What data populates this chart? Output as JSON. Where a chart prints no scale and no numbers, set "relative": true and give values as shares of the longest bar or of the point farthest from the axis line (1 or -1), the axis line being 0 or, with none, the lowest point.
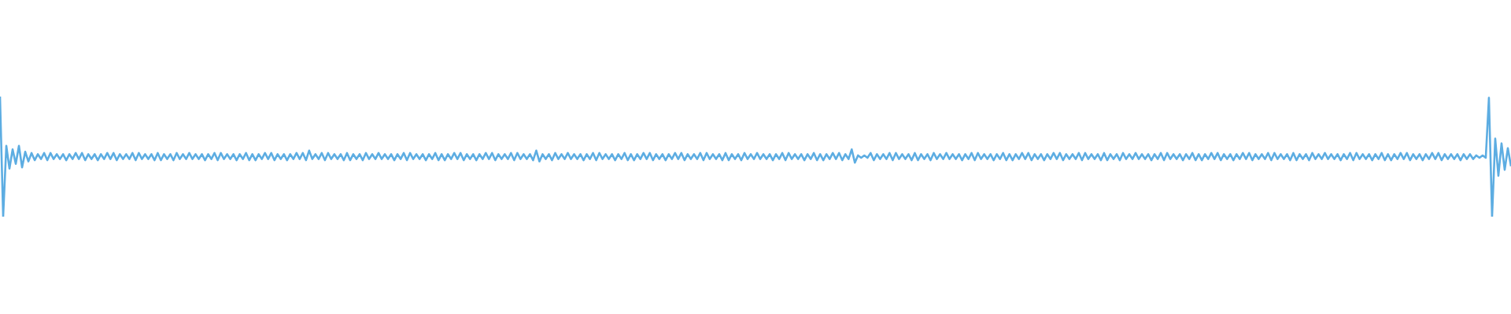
{
  "chart_data": {
    "type": "line",
    "relative": true,
    "color": "#5dade2",
    "categories": [
      null,
      null,
      null,
      null,
      null,
      null,
      null,
      null,
      null,
      null,
      null,
      null,
      null,
      null,
      null,
      null,
      null,
      null,
      null,
      null,
      null,
      null,
      null,
      null,
      null,
      null,
      null,
      null,
      null,
      null,
      null,
      null,
      null,
      null,
      null,
      null,
      null,
      null,
      null,
      null,
      null,
      null,
      null,
      null,
      null,
      null,
      null,
      null,
      null,
      null,
      null,
      null,
      null,
      null,
      null,
      null,
      null,
      null,
      null,
      null,
      null,
      null,
      null,
      null,
      null,
      null,
      null,
      null,
      null,
      null,
      null,
      null,
      null,
      null,
      null,
      null,
      null,
      null,
      null,
      null,
      null,
      null,
      null,
      null,
      null,
      null,
      null,
      null,
      null,
      null,
      null,
      null,
      null,
      null,
      null,
      null,
      null,
      null,
      null,
      null,
      null,
      null,
      null,
      null,
      null,
      null,
      null,
      null,
      null,
      null,
      null,
      null,
      null,
      null,
      null,
      null,
      null,
      null,
      null,
      null,
      null,
      null,
      null,
      null,
      null,
      null,
      null,
      null,
      null,
      null,
      null,
      null,
      null,
      null,
      null,
      null,
      null,
      null,
      null,
      null,
      null,
      null,
      null,
      null,
      null,
      null,
      null,
      null,
      null,
      null,
      null,
      null,
      null,
      null,
      null,
      null,
      null,
      null,
      null,
      null,
      null,
      null,
      null,
      null,
      null,
      null,
      null,
      null,
      null,
      null,
      null,
      null,
      null,
      null,
      null,
      null,
      null,
      null,
      null,
      null,
      null,
      null,
      null,
      null,
      null,
      null,
      null,
      null,
      null,
      null,
      null,
      null,
      null,
      null,
      null,
      null,
      null,
      null,
      null,
      null,
      null,
      null,
      null,
      null,
      null,
      null,
      null,
      null,
      null,
      null,
      null,
      null,
      null,
      null,
      null,
      null,
      null,
      null,
      null,
      null,
      null,
      null,
      null,
      null,
      null,
      null,
      null,
      null,
      null,
      null,
      null,
      null,
      null,
      null,
      null,
      null,
      null,
      null,
      null,
      null,
      null,
      null,
      null,
      null,
      null,
      null,
      null,
      null,
      null,
      null,
      null,
      null,
      null,
      null,
      null,
      null,
      null,
      null,
      null,
      null,
      null,
      null,
      null,
      null,
      null,
      null,
      null,
      null,
      null,
      null,
      null,
      null,
      null,
      null,
      null,
      null,
      null,
      null,
      null,
      null,
      null,
      null,
      null,
      null,
      null,
      null,
      null,
      null,
      null,
      null,
      null,
      null,
      null,
      null,
      null,
      null,
      null,
      null,
      null,
      null,
      null,
      null,
      null,
      null,
      null,
      null,
      null,
      null,
      null,
      null,
      null,
      null,
      null,
      null,
      null,
      null,
      null,
      null,
      null,
      null,
      null,
      null,
      null,
      null,
      null,
      null,
      null,
      null,
      null,
      null,
      null,
      null,
      null,
      null,
      null,
      null,
      null,
      null,
      null,
      null,
      null,
      null,
      null,
      null,
      null,
      null,
      null,
      null,
      null,
      null,
      null,
      null,
      null,
      null,
      null,
      null,
      null,
      null,
      null,
      null,
      null,
      null,
      null,
      null,
      null,
      null,
      null,
      null,
      null,
      null,
      null,
      null,
      null,
      null,
      null,
      null,
      null,
      null,
      null,
      null,
      null,
      null,
      null,
      null,
      null,
      null,
      null,
      null,
      null,
      null,
      null,
      null,
      null,
      null,
      null,
      null,
      null,
      null,
      null,
      null,
      null,
      null,
      null,
      null,
      null,
      null,
      null,
      null,
      null,
      null,
      null,
      null,
      null,
      null,
      null,
      null,
      null,
      null,
      null,
      null,
      null,
      null,
      null,
      null,
      null,
      null,
      null,
      null,
      null,
      null,
      null,
      null,
      null,
      null,
      null,
      null,
      null,
      null,
      null,
      null,
      null,
      null,
      null,
      null,
      null,
      null,
      null,
      null,
      null,
      null,
      null,
      null,
      null,
      null,
      null,
      null,
      null,
      null,
      null,
      null,
      null,
      null,
      null,
      null,
      null,
      null,
      null,
      null,
      null,
      null,
      null,
      null,
      null,
      null,
      null,
      null,
      null,
      null,
      null,
      null
    ],
    "values": [
      1,
      0,
      0.59,
      0.4,
      0.56,
      0.44,
      0.59,
      0.41,
      0.54,
      0.46,
      0.53,
      0.47,
      0.52,
      0.48,
      0.53,
      0.47,
      0.53,
      0.48,
      0.52,
      0.48,
      0.52,
      0.47,
      0.52,
      0.48,
      0.53,
      0.48,
      0.53,
      0.47,
      0.52,
      0.48,
      0.52,
      0.47,
      0.52,
      0.48,
      0.53,
      0.48,
      0.53,
      0.47,
      0.52,
      0.48,
      0.52,
      0.48,
      0.53,
      0.47,
      0.53,
      0.48,
      0.52,
      0.48,
      0.52,
      0.47,
      0.53,
      0.47,
      0.52,
      0.48,
      0.52,
      0.47,
      0.53,
      0.48,
      0.52,
      0.48,
      0.53,
      0.48,
      0.52,
      0.48,
      0.52,
      0.47,
      0.52,
      0.48,
      0.53,
      0.47,
      0.53,
      0.48,
      0.52,
      0.48,
      0.52,
      0.47,
      0.52,
      0.48,
      0.53,
      0.47,
      0.52,
      0.47,
      0.52,
      0.48,
      0.53,
      0.48,
      0.53,
      0.47,
      0.52,
      0.48,
      0.52,
      0.47,
      0.52,
      0.48,
      0.53,
      0.48,
      0.53,
      0.47,
      0.55,
      0.48,
      0.52,
      0.48,
      0.53,
      0.47,
      0.53,
      0.48,
      0.52,
      0.48,
      0.52,
      0.47,
      0.53,
      0.47,
      0.52,
      0.48,
      0.52,
      0.47,
      0.53,
      0.48,
      0.52,
      0.48,
      0.53,
      0.48,
      0.52,
      0.48,
      0.52,
      0.47,
      0.52,
      0.48,
      0.53,
      0.47,
      0.53,
      0.48,
      0.52,
      0.48,
      0.52,
      0.47,
      0.52,
      0.48,
      0.53,
      0.47,
      0.52,
      0.47,
      0.52,
      0.48,
      0.53,
      0.48,
      0.53,
      0.47,
      0.52,
      0.48,
      0.52,
      0.47,
      0.52,
      0.48,
      0.53,
      0.48,
      0.53,
      0.47,
      0.52,
      0.48,
      0.52,
      0.48,
      0.53,
      0.47,
      0.53,
      0.48,
      0.52,
      0.48,
      0.52,
      0.47,
      0.55,
      0.46,
      0.52,
      0.48,
      0.52,
      0.47,
      0.53,
      0.48,
      0.52,
      0.48,
      0.53,
      0.48,
      0.52,
      0.48,
      0.52,
      0.47,
      0.52,
      0.48,
      0.53,
      0.47,
      0.53,
      0.48,
      0.52,
      0.48,
      0.52,
      0.47,
      0.52,
      0.48,
      0.53,
      0.47,
      0.52,
      0.47,
      0.52,
      0.48,
      0.53,
      0.48,
      0.53,
      0.47,
      0.52,
      0.48,
      0.52,
      0.47,
      0.52,
      0.48,
      0.53,
      0.48,
      0.53,
      0.47,
      0.52,
      0.48,
      0.52,
      0.48,
      0.53,
      0.47,
      0.53,
      0.48,
      0.52,
      0.48,
      0.52,
      0.47,
      0.53,
      0.47,
      0.52,
      0.48,
      0.52,
      0.47,
      0.53,
      0.48,
      0.52,
      0.48,
      0.53,
      0.48,
      0.52,
      0.48,
      0.52,
      0.47,
      0.52,
      0.48,
      0.53,
      0.47,
      0.53,
      0.48,
      0.52,
      0.48,
      0.52,
      0.47,
      0.52,
      0.48,
      0.53,
      0.47,
      0.52,
      0.47,
      0.52,
      0.48,
      0.53,
      0.48,
      0.53,
      0.47,
      0.52,
      0.48,
      0.56,
      0.45,
      0.51,
      0.49,
      0.51,
      0.49,
      0.53,
      0.47,
      0.52,
      0.48,
      0.52,
      0.48,
      0.53,
      0.47,
      0.53,
      0.48,
      0.52,
      0.48,
      0.52,
      0.47,
      0.53,
      0.47,
      0.52,
      0.48,
      0.52,
      0.47,
      0.53,
      0.48,
      0.52,
      0.48,
      0.53,
      0.48,
      0.52,
      0.48,
      0.52,
      0.47,
      0.52,
      0.48,
      0.53,
      0.47,
      0.53,
      0.48,
      0.52,
      0.48,
      0.52,
      0.47,
      0.52,
      0.48,
      0.53,
      0.47,
      0.52,
      0.47,
      0.52,
      0.48,
      0.53,
      0.48,
      0.53,
      0.47,
      0.52,
      0.48,
      0.52,
      0.47,
      0.52,
      0.48,
      0.53,
      0.48,
      0.53,
      0.47,
      0.52,
      0.48,
      0.52,
      0.48,
      0.53,
      0.47,
      0.53,
      0.48,
      0.52,
      0.48,
      0.52,
      0.47,
      0.53,
      0.47,
      0.52,
      0.48,
      0.52,
      0.47,
      0.53,
      0.48,
      0.52,
      0.48,
      0.53,
      0.48,
      0.52,
      0.48,
      0.52,
      0.47,
      0.52,
      0.48,
      0.53,
      0.47,
      0.53,
      0.48,
      0.52,
      0.48,
      0.52,
      0.47,
      0.52,
      0.48,
      0.53,
      0.47,
      0.52,
      0.47,
      0.52,
      0.48,
      0.53,
      0.48,
      0.53,
      0.47,
      0.52,
      0.48,
      0.52,
      0.47,
      0.52,
      0.48,
      0.53,
      0.48,
      0.53,
      0.47,
      0.52,
      0.48,
      0.52,
      0.48,
      0.53,
      0.47,
      0.53,
      0.48,
      0.52,
      0.48,
      0.52,
      0.47,
      0.53,
      0.47,
      0.52,
      0.48,
      0.52,
      0.47,
      0.53,
      0.48,
      0.52,
      0.48,
      0.53,
      0.48,
      0.52,
      0.48,
      0.52,
      0.47,
      0.52,
      0.48,
      0.53,
      0.47,
      0.53,
      0.48,
      0.52,
      0.48,
      0.52,
      0.47,
      0.52,
      0.48,
      0.53,
      0.47,
      0.52,
      0.47,
      0.52,
      0.48,
      0.53,
      0.48,
      0.53,
      0.47,
      0.52,
      0.48,
      0.52,
      0.47,
      0.52,
      0.48,
      0.53,
      0.48,
      0.53,
      0.47,
      0.52,
      0.48,
      0.52,
      0.48,
      0.52,
      0.47,
      0.52,
      0.48,
      0.52,
      0.48,
      0.51,
      0.49,
      0.51,
      0.49,
      0.99,
      0,
      0.65,
      0.34,
      0.61,
      0.39,
      0.57,
      0.42
    ]
  }
}
